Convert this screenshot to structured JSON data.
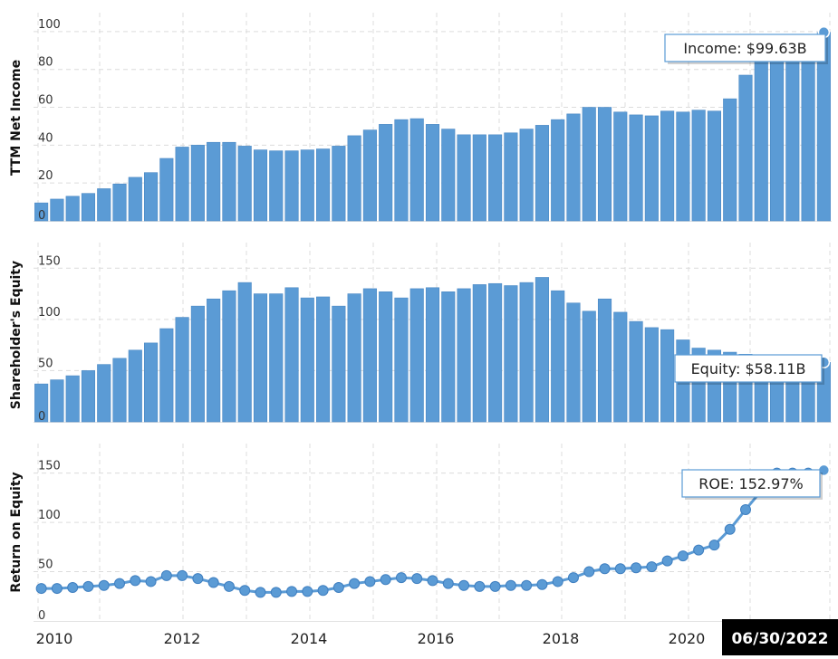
{
  "chart_data": [
    {
      "type": "bar",
      "title": "",
      "ylabel": "TTM Net Income",
      "ylim": [
        0,
        110
      ],
      "yticks": [
        0,
        20,
        40,
        60,
        80,
        100
      ],
      "color": "#5b9bd5",
      "values": [
        9.5,
        11.5,
        13,
        14.5,
        17,
        19.5,
        23,
        25.5,
        33,
        39,
        40,
        41.5,
        41.5,
        39.5,
        37.5,
        37,
        37,
        37.5,
        38,
        39.5,
        45,
        48,
        51,
        53.5,
        54,
        51,
        48.5,
        45.5,
        45.5,
        45.5,
        46.5,
        48.5,
        50.5,
        53.5,
        56.5,
        60,
        60,
        57.5,
        56,
        55.5,
        58,
        57.5,
        58.5,
        58,
        64.5,
        77,
        87,
        94.5,
        94.5,
        94.5,
        99.63
      ],
      "callout": "Income: $99.63B"
    },
    {
      "type": "bar",
      "title": "",
      "ylabel": "Shareholder's Equity",
      "ylim": [
        0,
        175
      ],
      "yticks": [
        0,
        50,
        100,
        150
      ],
      "color": "#5b9bd5",
      "values": [
        37,
        41,
        45,
        50,
        56,
        62,
        70,
        77,
        91,
        102,
        113,
        120,
        128,
        136,
        125,
        125,
        131,
        121,
        122,
        113,
        125,
        130,
        127,
        121,
        130,
        131,
        127,
        130,
        134,
        135,
        133,
        136,
        141,
        128,
        116,
        108,
        120,
        107,
        98,
        92,
        90,
        80,
        72,
        70,
        68,
        66,
        64,
        63,
        62,
        60,
        58.11
      ],
      "callout": "Equity: $58.11B"
    },
    {
      "type": "line",
      "title": "",
      "ylabel": "Return on Equity",
      "ylim": [
        0,
        180
      ],
      "yticks": [
        0,
        50,
        100,
        150
      ],
      "color": "#5b9bd5",
      "values": [
        33,
        33,
        34,
        35,
        36,
        38,
        41,
        40,
        46,
        46,
        43,
        39,
        35,
        31,
        29,
        29,
        30,
        30,
        31,
        34,
        38,
        40,
        42,
        44,
        43,
        41,
        38,
        36,
        35,
        35,
        36,
        36,
        37,
        40,
        44,
        50,
        53,
        53,
        54,
        55,
        61,
        66,
        72,
        77,
        93,
        113,
        132,
        150,
        150,
        150,
        152.97
      ],
      "callout": "ROE: 152.97%"
    }
  ],
  "x_axis": {
    "labels": [
      "2010",
      "2012",
      "2014",
      "2016",
      "2018",
      "2020"
    ],
    "current_date": "06/30/2022"
  }
}
